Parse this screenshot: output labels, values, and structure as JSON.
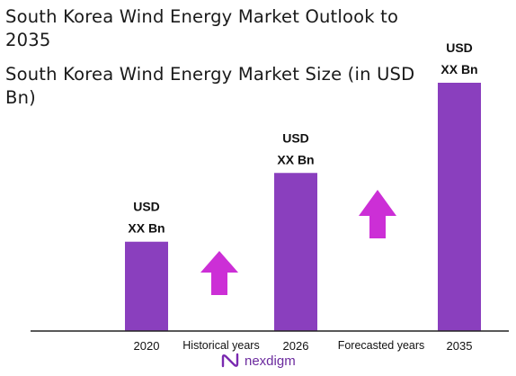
{
  "title": "South Korea Wind Energy Market Outlook to 2035",
  "subtitle": "South Korea Wind Energy Market Size (in USD Bn)",
  "colors": {
    "bar": "#8a3fbe",
    "arrow": "#cc2fd6",
    "axis": "#222222"
  },
  "chart_data": {
    "type": "bar",
    "title": "South Korea Wind Energy Market Outlook to 2035",
    "subtitle": "South Korea Wind Energy Market Size (in USD Bn)",
    "categories": [
      "2020",
      "2026",
      "2035"
    ],
    "series": [
      {
        "values": [
          100,
          177,
          278
        ],
        "labels": [
          [
            "USD",
            "XX Bn"
          ],
          [
            "USD",
            "XX Bn"
          ],
          [
            "USD",
            "XX Bn"
          ]
        ]
      }
    ],
    "ylim": [
      0,
      280
    ],
    "grid": false,
    "periods": [
      {
        "label": "Historical years",
        "trend": "growth-arrow"
      },
      {
        "label": "Forecasted years",
        "trend": "growth-arrow"
      }
    ]
  },
  "logo": {
    "text": "nexdigm",
    "icon": "nexdigm-logo-icon"
  }
}
